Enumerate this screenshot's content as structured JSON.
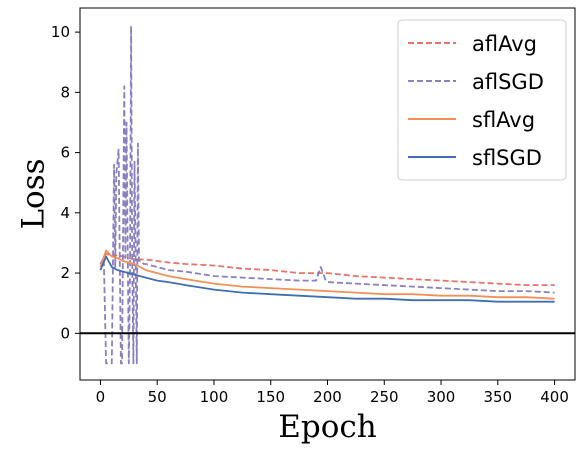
{
  "chart_data": {
    "type": "line",
    "xlabel": "Epoch",
    "ylabel": "Loss",
    "xlim": [
      -18,
      418
    ],
    "ylim": [
      -1.55,
      10.8
    ],
    "xticks": [
      0,
      50,
      100,
      150,
      200,
      250,
      300,
      350,
      400
    ],
    "yticks": [
      0,
      2,
      4,
      6,
      8,
      10
    ],
    "hline": 0,
    "grid": false,
    "legend_position": "top-right",
    "series": [
      {
        "name": "aflAvg",
        "color": "#e8736c",
        "dash": "dashed",
        "x": [
          0,
          5,
          10,
          15,
          20,
          25,
          30,
          40,
          50,
          60,
          75,
          100,
          125,
          150,
          175,
          200,
          225,
          250,
          275,
          300,
          325,
          350,
          375,
          400
        ],
        "y": [
          2.3,
          2.65,
          2.55,
          2.6,
          2.55,
          2.5,
          2.45,
          2.45,
          2.4,
          2.35,
          2.3,
          2.25,
          2.15,
          2.1,
          2.0,
          2.0,
          1.9,
          1.85,
          1.8,
          1.75,
          1.7,
          1.65,
          1.6,
          1.6
        ]
      },
      {
        "name": "aflSGD",
        "color": "#8b7fc0",
        "dash": "dashed",
        "x": [
          0,
          3,
          5,
          8,
          10,
          12,
          13,
          14,
          16,
          18,
          19,
          21,
          22,
          23,
          25,
          26,
          27,
          28,
          29,
          30,
          31,
          32,
          33,
          34,
          36,
          38,
          40,
          50,
          60,
          75,
          100,
          125,
          150,
          175,
          190,
          194,
          198,
          200,
          225,
          250,
          275,
          300,
          325,
          350,
          375,
          400
        ],
        "y": [
          2.3,
          2.5,
          -1.0,
          -1.0,
          -1.0,
          5.6,
          2.2,
          5.3,
          6.1,
          -1.0,
          -1.0,
          8.2,
          2.5,
          7.0,
          -1.0,
          2.0,
          10.2,
          2.3,
          -1.0,
          5.7,
          2.6,
          -1.0,
          6.3,
          2.4,
          2.4,
          2.3,
          2.3,
          2.2,
          2.1,
          2.05,
          1.9,
          1.85,
          1.8,
          1.75,
          1.75,
          2.2,
          1.8,
          1.7,
          1.65,
          1.6,
          1.55,
          1.5,
          1.45,
          1.4,
          1.4,
          1.35
        ]
      },
      {
        "name": "sflAvg",
        "color": "#f2905a",
        "dash": "solid",
        "x": [
          0,
          5,
          10,
          15,
          20,
          25,
          30,
          40,
          50,
          60,
          75,
          100,
          125,
          150,
          175,
          200,
          225,
          250,
          275,
          300,
          325,
          350,
          375,
          400
        ],
        "y": [
          2.2,
          2.75,
          2.55,
          2.5,
          2.4,
          2.35,
          2.3,
          2.1,
          2.0,
          1.9,
          1.8,
          1.65,
          1.55,
          1.5,
          1.45,
          1.4,
          1.35,
          1.3,
          1.3,
          1.25,
          1.25,
          1.2,
          1.2,
          1.15
        ]
      },
      {
        "name": "sflSGD",
        "color": "#3f6fb0",
        "dash": "solid",
        "x": [
          0,
          5,
          10,
          15,
          20,
          25,
          30,
          40,
          50,
          60,
          75,
          100,
          125,
          150,
          175,
          200,
          225,
          250,
          275,
          300,
          325,
          350,
          375,
          400
        ],
        "y": [
          2.1,
          2.55,
          2.2,
          2.1,
          2.05,
          2.0,
          1.95,
          1.85,
          1.75,
          1.7,
          1.6,
          1.45,
          1.35,
          1.3,
          1.25,
          1.2,
          1.15,
          1.15,
          1.1,
          1.1,
          1.1,
          1.05,
          1.05,
          1.05
        ]
      }
    ]
  }
}
